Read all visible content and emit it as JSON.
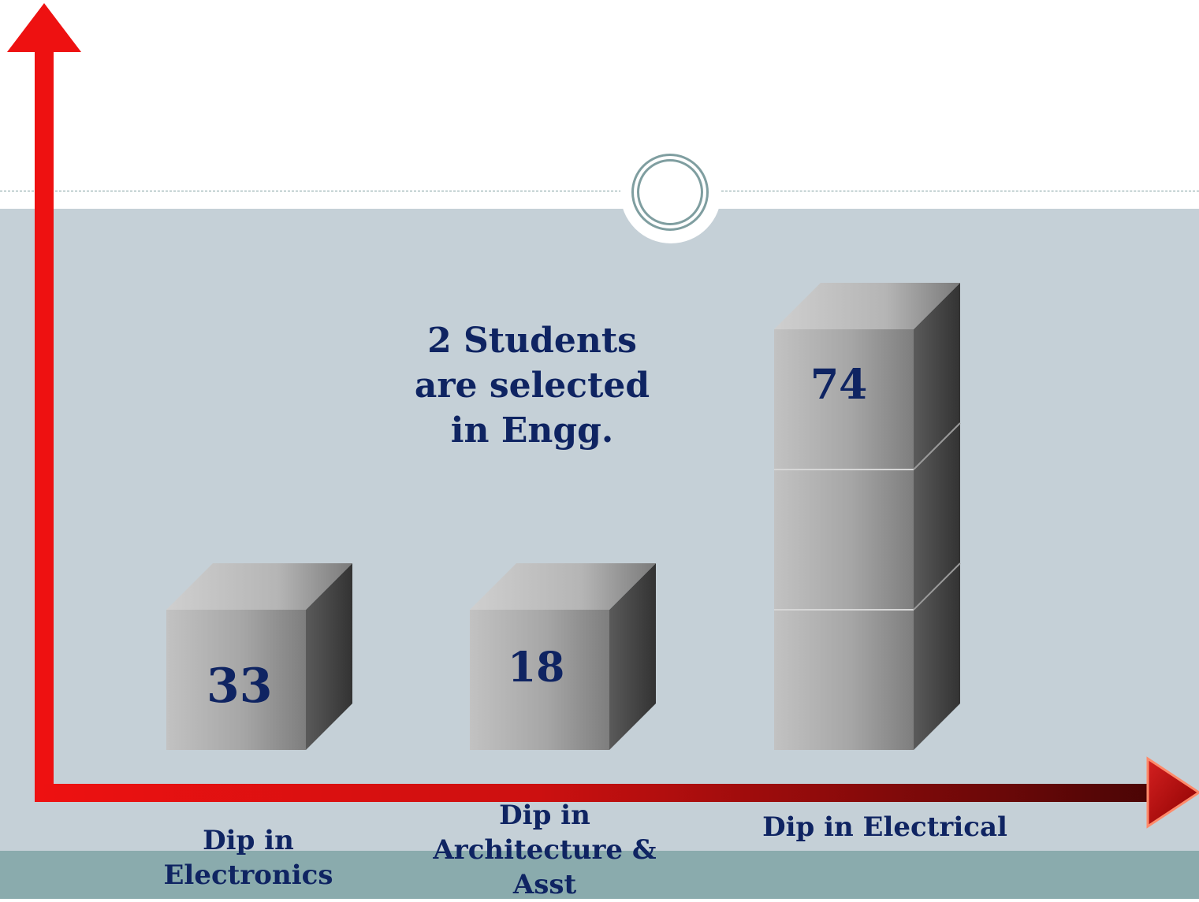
{
  "chart_data": {
    "type": "bar",
    "categories": [
      "Dip in Electronics",
      "Dip in Architecture & Asst",
      "Dip in Electrical"
    ],
    "category_label_lines": [
      [
        "Dip in",
        "Electronics"
      ],
      [
        "Dip in",
        "Architecture &",
        "Asst"
      ],
      [
        "Dip in Electrical"
      ]
    ],
    "values": [
      33,
      18,
      74
    ],
    "value_labels": [
      "33",
      "18",
      "74"
    ],
    "bar_units": [
      1,
      1,
      3
    ],
    "annotation_lines": [
      "2 Students",
      "are selected",
      "in Engg."
    ],
    "grid": false,
    "legend": "none"
  },
  "colors": {
    "axis_red": "#ee1111",
    "axis_dark": "#4a0505",
    "label_navy": "#0f2462",
    "panel": "#c5d0d7",
    "footer": "#8aabad",
    "accent": "#7f9ea0"
  }
}
